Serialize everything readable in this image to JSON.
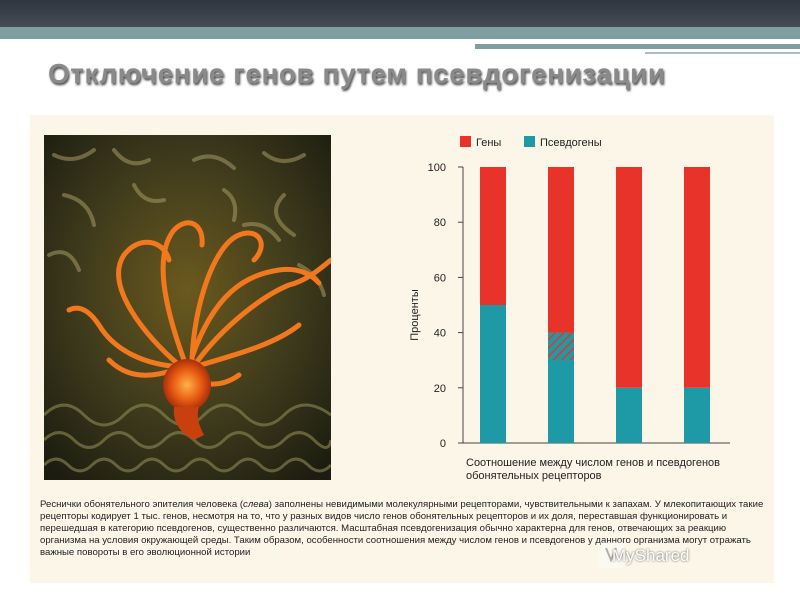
{
  "slide": {
    "title": "Отключение генов путем псевдогенизации"
  },
  "chart_data": {
    "type": "bar",
    "stacked": true,
    "ylabel": "Проценты",
    "ylim": [
      0,
      100
    ],
    "yticks": [
      "100",
      "80",
      "60",
      "40",
      "20",
      "0"
    ],
    "categories": [
      "",
      "",
      "",
      ""
    ],
    "series": [
      {
        "name": "Гены",
        "color": "#e8332b",
        "values": [
          50,
          60,
          80,
          80
        ]
      },
      {
        "name": "Псевдогены",
        "color": "#1d9aa5",
        "values": [
          50,
          40,
          20,
          20
        ]
      }
    ],
    "hatched_segment": {
      "bar": 2,
      "from": 30,
      "to": 40
    }
  },
  "chart_caption": "Соотношение между числом генов и псевдогенов обонятельных рецепторов",
  "main_caption": {
    "before": "Реснички обонятельного эпителия человека (",
    "italic": "слева",
    "after": ") заполнены невидимыми молекулярными рецепторами, чувствительными к запахам. У млекопитающих такие рецепторы кодирует 1 тыс. генов, несмотря на то, что у разных видов число генов обонятельных рецепторов и их доля, переставшая функционировать и перешедшая в категорию псевдогенов, существенно различаются. Масштабная псевдогенизация обычно характерна для генов, отвечающих за реакцию организма на условия окружающей среды. Таким образом, особенности соотношения между числом генов и псевдогенов у данного организма могут отражать важные повороты в его эволюционной истории"
  },
  "watermark": "MyShared"
}
